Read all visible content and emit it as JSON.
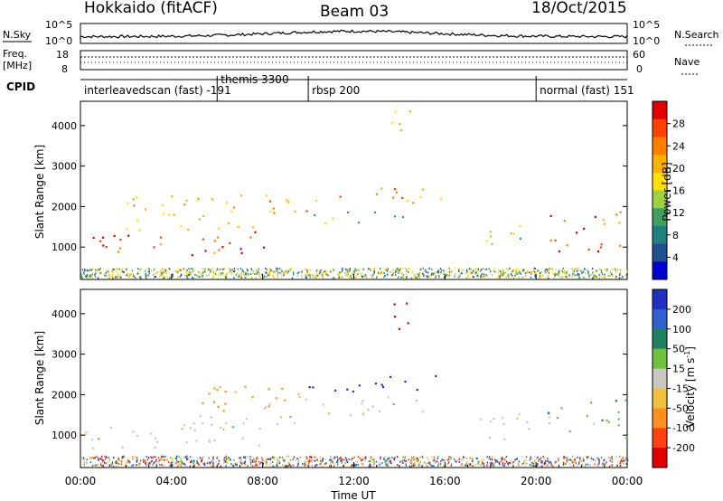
{
  "header": {
    "station": "Hokkaido (fitACF)",
    "beam": "Beam 03",
    "date": "18/Oct/2015"
  },
  "top_panels": {
    "nsky_label": "N.Sky",
    "nsearch_label": "N.Search",
    "nsky_ticks": [
      "10^5",
      "10^0"
    ],
    "nsearch_ticks": [
      "10^5",
      "10^0"
    ],
    "freq_label": "Freq.",
    "freq_unit": "[MHz]",
    "freq_ticks": [
      "18",
      "8"
    ],
    "nave_label": "Nave",
    "nave_ticks": [
      "60",
      "0"
    ],
    "cpid_label": "CPID"
  },
  "cpid_segments": [
    {
      "name": "interleavedscan (fast)",
      "code": "-191",
      "start": 0,
      "end": 6
    },
    {
      "name": "themis",
      "code": "3300",
      "start": 6,
      "end": 10
    },
    {
      "name": "rbsp",
      "code": "200",
      "start": 10,
      "end": 20
    },
    {
      "name": "normal (fast)",
      "code": "151",
      "start": 20,
      "end": 24
    }
  ],
  "power_panel": {
    "ylabel": "Slant Range [km]",
    "yticks": [
      "4000",
      "3000",
      "2000",
      "1000"
    ],
    "colorbar_label": "Power [dB]",
    "colorbar_ticks": [
      "28",
      "24",
      "20",
      "16",
      "12",
      "8",
      "4"
    ],
    "colors": [
      "#e00000",
      "#ff4000",
      "#ff8000",
      "#ffb000",
      "#ffe000",
      "#a0d040",
      "#40a060",
      "#208080",
      "#205090",
      "#0000d0"
    ]
  },
  "velocity_panel": {
    "ylabel": "Slant Range [km]",
    "yticks": [
      "4000",
      "3000",
      "2000",
      "1000"
    ],
    "colorbar_label": "Velocity [m s",
    "colorbar_exp": "-1",
    "colorbar_close": "]",
    "colorbar_ticks": [
      "200",
      "100",
      "50",
      "15",
      "-15",
      "-50",
      "-100",
      "-200"
    ],
    "colors": [
      "#2030c0",
      "#3060d0",
      "#208060",
      "#70c040",
      "#c8c8c0",
      "#f0c040",
      "#ff9020",
      "#ff4010",
      "#e00000"
    ]
  },
  "xaxis": {
    "ticks": [
      "00:00",
      "04:00",
      "08:00",
      "12:00",
      "16:00",
      "20:00",
      "00:00"
    ],
    "label": "Time UT"
  },
  "chart_data": [
    {
      "type": "heatmap",
      "title": "",
      "quantity": "Power",
      "unit": "dB",
      "xlabel": "Time UT",
      "ylabel": "Slant Range [km]",
      "xlim": [
        0,
        24
      ],
      "ylim": [
        200,
        4600
      ],
      "colorbar_range": [
        0,
        30
      ],
      "features": [
        {
          "t_start": 0.0,
          "t_end": 8.2,
          "range_low": 800,
          "range_high": 1400,
          "power": 26
        },
        {
          "t_start": 2.0,
          "t_end": 8.5,
          "range_low": 1400,
          "range_high": 2300,
          "power": 20
        },
        {
          "t_start": 8.0,
          "t_end": 10.0,
          "range_low": 1700,
          "range_high": 2200,
          "power": 24
        },
        {
          "t_start": 10.0,
          "t_end": 16.0,
          "range_low": 2100,
          "range_high": 2500,
          "power": 22
        },
        {
          "t_start": 10.0,
          "t_end": 15.0,
          "range_low": 1600,
          "range_high": 1900,
          "power": 14
        },
        {
          "t_start": 17.5,
          "t_end": 20.0,
          "range_low": 1000,
          "range_high": 1600,
          "power": 16
        },
        {
          "t_start": 20.5,
          "t_end": 24.0,
          "range_low": 900,
          "range_high": 1900,
          "power": 25
        },
        {
          "t_start": 13.5,
          "t_end": 14.5,
          "range_low": 3500,
          "range_high": 4400,
          "power": 18
        }
      ]
    },
    {
      "type": "heatmap",
      "title": "",
      "quantity": "Velocity",
      "unit": "m s-1",
      "xlabel": "Time UT",
      "ylabel": "Slant Range [km]",
      "xlim": [
        0,
        24
      ],
      "ylim": [
        200,
        4600
      ],
      "colorbar_range": [
        -250,
        250
      ],
      "features": [
        {
          "t_start": 0.0,
          "t_end": 8.0,
          "range_low": 700,
          "range_high": 1500,
          "velocity": 0
        },
        {
          "t_start": 8.0,
          "t_end": 10.0,
          "range_low": 1300,
          "range_high": 2200,
          "velocity": -10
        },
        {
          "t_start": 10.0,
          "t_end": 16.0,
          "range_low": 2100,
          "range_high": 2500,
          "velocity": 200
        },
        {
          "t_start": 10.0,
          "t_end": 15.0,
          "range_low": 1500,
          "range_high": 2000,
          "velocity": 0
        },
        {
          "t_start": 17.5,
          "t_end": 20.0,
          "range_low": 800,
          "range_high": 1600,
          "velocity": 0
        },
        {
          "t_start": 20.5,
          "t_end": 24.0,
          "range_low": 900,
          "range_high": 1900,
          "velocity": 20
        },
        {
          "t_start": 13.5,
          "t_end": 14.5,
          "range_low": 3500,
          "range_high": 4400,
          "velocity": -200
        },
        {
          "t_start": 5.0,
          "t_end": 9.0,
          "range_low": 1500,
          "range_high": 2300,
          "velocity": -50
        }
      ]
    }
  ]
}
